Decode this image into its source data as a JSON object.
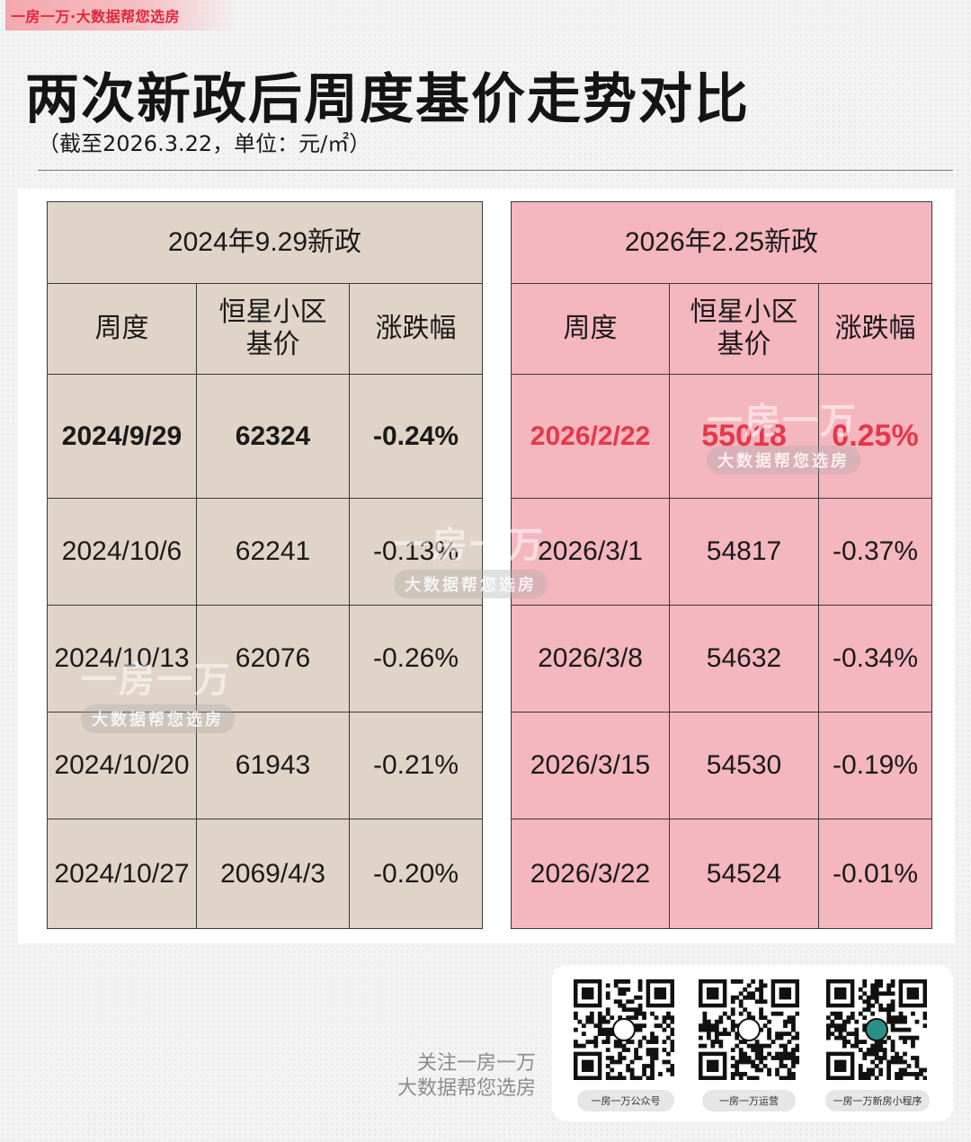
{
  "brand": {
    "tag": "一房一万·大数据帮您选房"
  },
  "header": {
    "title": "两次新政后周度基价走势对比",
    "subtitle": "（截至2026.3.22，单位：元/㎡）"
  },
  "left_table": {
    "title": "2024年9.29新政",
    "columns": [
      "周度",
      "恒星小区基价",
      "涨跌幅"
    ],
    "rows": [
      [
        "2024/9/29",
        "62324",
        "-0.24%"
      ],
      [
        "2024/10/6",
        "62241",
        "-0.13%"
      ],
      [
        "2024/10/13",
        "62076",
        "-0.26%"
      ],
      [
        "2024/10/20",
        "61943",
        "-0.21%"
      ],
      [
        "2024/10/27",
        "2069/4/3",
        "-0.20%"
      ]
    ]
  },
  "right_table": {
    "title": "2026年2.25新政",
    "columns": [
      "周度",
      "恒星小区基价",
      "涨跌幅"
    ],
    "rows": [
      [
        "2026/2/22",
        "55018",
        "0.25%"
      ],
      [
        "2026/3/1",
        "54817",
        "-0.37%"
      ],
      [
        "2026/3/8",
        "54632",
        "-0.34%"
      ],
      [
        "2026/3/15",
        "54530",
        "-0.19%"
      ],
      [
        "2026/3/22",
        "54524",
        "-0.01%"
      ]
    ]
  },
  "watermark": {
    "main": "一房一万",
    "sub": "大数据帮您选房"
  },
  "footer": {
    "follow_line1": "关注一房一万",
    "follow_line2": "大数据帮您选房",
    "qr_codes": [
      {
        "label": "一房一万公众号",
        "icon": "logo-icon"
      },
      {
        "label": "一房一万运营",
        "icon": "wechat-icon"
      },
      {
        "label": "一房一万新房小程序",
        "icon": "logo-icon"
      }
    ]
  }
}
